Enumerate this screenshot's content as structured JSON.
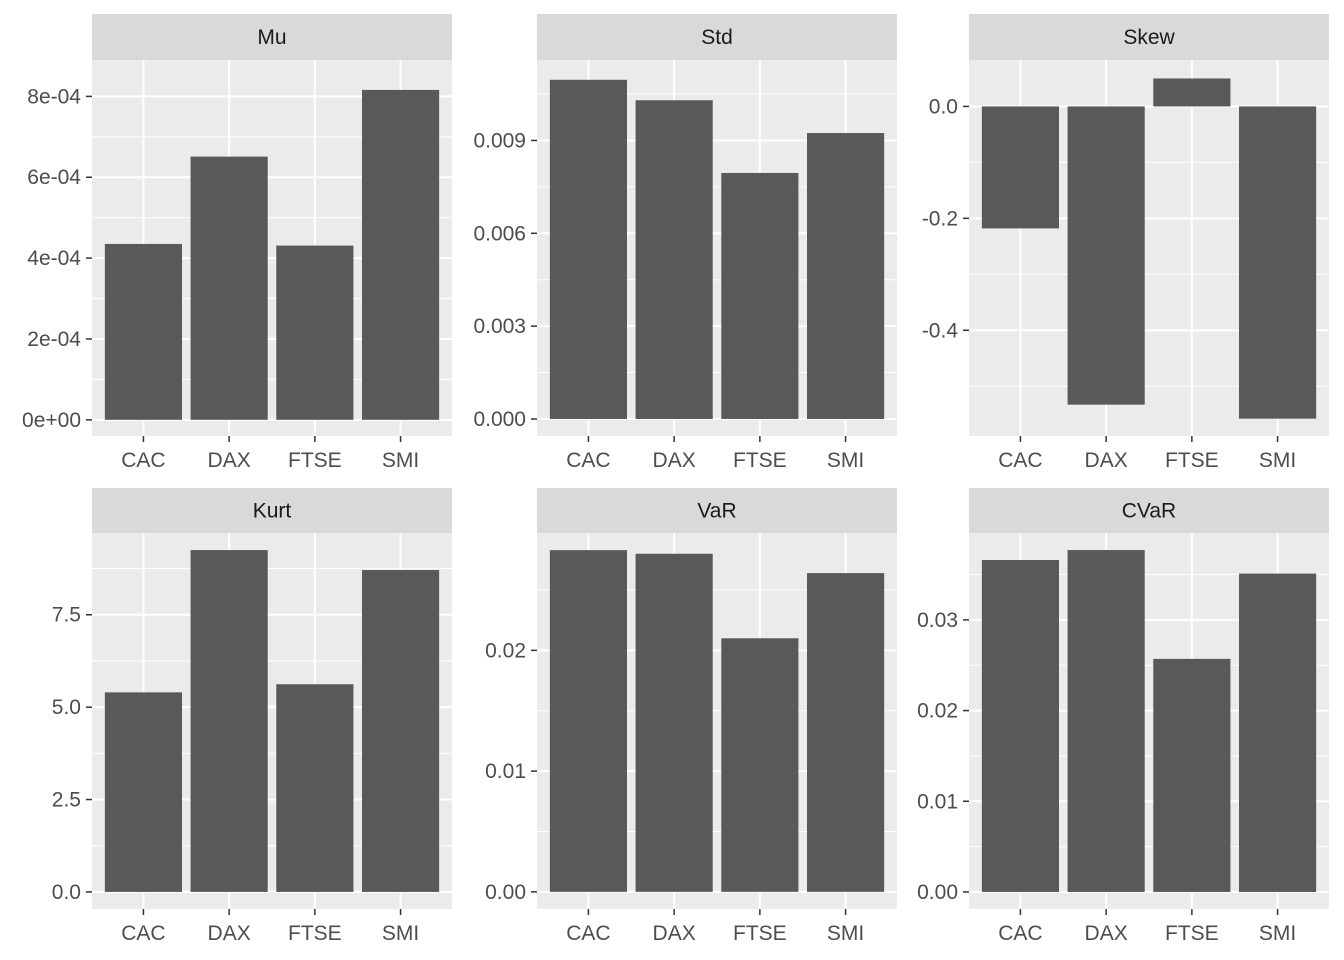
{
  "colors": {
    "bar": "#595959",
    "panel_bg": "#ebebeb",
    "strip_bg": "#d9d9d9",
    "grid": "#ffffff",
    "tick": "#333333"
  },
  "chart_data": [
    {
      "type": "bar",
      "title": "Mu",
      "categories": [
        "CAC",
        "DAX",
        "FTSE",
        "SMI"
      ],
      "values": [
        0.000435,
        0.000651,
        0.000431,
        0.000816
      ],
      "ylim": [
        -4e-05,
        0.00089
      ],
      "yticks": [
        0,
        0.0002,
        0.0004,
        0.0006,
        0.0008
      ],
      "ytick_labels": [
        "0e+00",
        "2e-04",
        "4e-04",
        "6e-04",
        "8e-04"
      ]
    },
    {
      "type": "bar",
      "title": "Std",
      "categories": [
        "CAC",
        "DAX",
        "FTSE",
        "SMI"
      ],
      "values": [
        0.01096,
        0.0103,
        0.00795,
        0.00924
      ],
      "ylim": [
        -0.00055,
        0.0116
      ],
      "yticks": [
        0,
        0.003,
        0.006,
        0.009
      ],
      "ytick_labels": [
        "0.000",
        "0.003",
        "0.006",
        "0.009"
      ]
    },
    {
      "type": "bar",
      "title": "Skew",
      "categories": [
        "CAC",
        "DAX",
        "FTSE",
        "SMI"
      ],
      "values": [
        -0.218,
        -0.533,
        0.05,
        -0.558
      ],
      "ylim": [
        -0.589,
        0.083
      ],
      "yticks": [
        -0.4,
        -0.2,
        0
      ],
      "ytick_labels": [
        "-0.4",
        "-0.2",
        "0.0"
      ]
    },
    {
      "type": "bar",
      "title": "Kurt",
      "categories": [
        "CAC",
        "DAX",
        "FTSE",
        "SMI"
      ],
      "values": [
        5.4,
        9.25,
        5.62,
        8.71
      ],
      "ylim": [
        -0.462,
        9.712
      ],
      "yticks": [
        0,
        2.5,
        5,
        7.5
      ],
      "ytick_labels": [
        "0.0",
        "2.5",
        "5.0",
        "7.5"
      ]
    },
    {
      "type": "bar",
      "title": "VaR",
      "categories": [
        "CAC",
        "DAX",
        "FTSE",
        "SMI"
      ],
      "values": [
        0.0283,
        0.028,
        0.021,
        0.0264
      ],
      "ylim": [
        -0.00142,
        0.02972
      ],
      "yticks": [
        0,
        0.01,
        0.02
      ],
      "ytick_labels": [
        "0.00",
        "0.01",
        "0.02"
      ]
    },
    {
      "type": "bar",
      "title": "CVaR",
      "categories": [
        "CAC",
        "DAX",
        "FTSE",
        "SMI"
      ],
      "values": [
        0.0366,
        0.0377,
        0.0257,
        0.0351
      ],
      "ylim": [
        -0.00188,
        0.03958
      ],
      "yticks": [
        0,
        0.01,
        0.02,
        0.03
      ],
      "ytick_labels": [
        "0.00",
        "0.01",
        "0.02",
        "0.03"
      ]
    }
  ]
}
